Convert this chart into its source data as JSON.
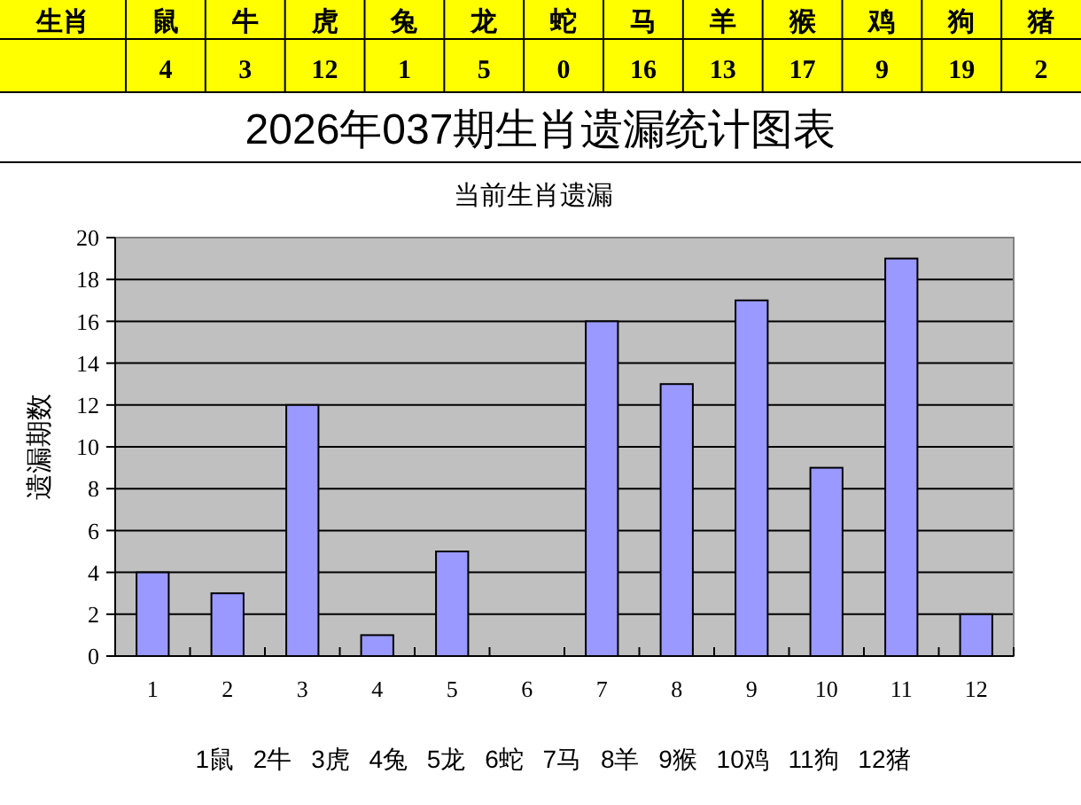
{
  "chart_data": [
    {
      "type": "other",
      "xlabel": "生肖",
      "categories": [
        "鼠",
        "牛",
        "虎",
        "兔",
        "龙",
        "蛇",
        "马",
        "羊",
        "猴",
        "鸡",
        "狗",
        "猪"
      ],
      "values": [
        4,
        3,
        12,
        1,
        5,
        0,
        16,
        13,
        17,
        9,
        19,
        2
      ],
      "color": "#ffff00",
      "data_labels": true
    },
    {
      "type": "bar",
      "title": "2026年037期生肖遗漏统计图表",
      "subtitle": "当前生肖遗漏",
      "ylabel": "遗漏期数",
      "categories": [
        "1",
        "2",
        "3",
        "4",
        "5",
        "6",
        "7",
        "8",
        "9",
        "10",
        "11",
        "12"
      ],
      "values": [
        4,
        3,
        12,
        1,
        5,
        0,
        16,
        13,
        17,
        9,
        19,
        2
      ],
      "color": "#9999ff",
      "ylim": [
        0,
        20
      ],
      "yticks": [
        0,
        2,
        4,
        6,
        8,
        10,
        12,
        14,
        16,
        18,
        20
      ],
      "grid": "y",
      "annotations": [
        "1鼠 2牛 3虎 4兔 5龙 6蛇 7马 8羊 9猴 10鸡 11狗 12猪"
      ]
    }
  ]
}
